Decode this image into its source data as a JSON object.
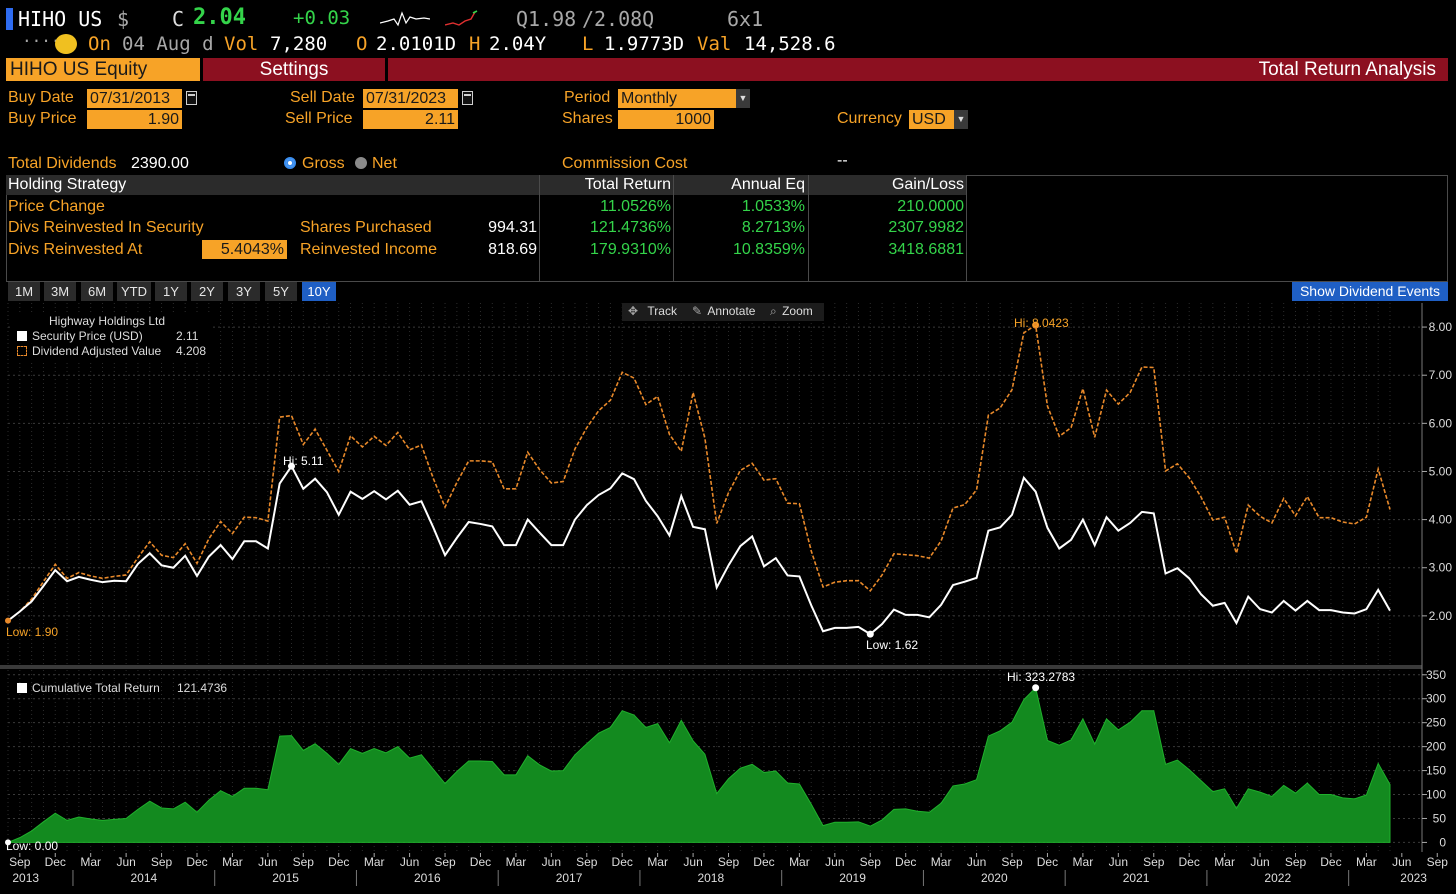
{
  "header": {
    "ticker": "HIHO US",
    "currency_symbol": "$",
    "last_label": "C",
    "last": "2.04",
    "change": "+0.03",
    "quote_q1": "Q1.98",
    "quote_sep": "/",
    "quote_q2": "2.08Q",
    "size": "6x1",
    "dots": "....",
    "on_label": "On",
    "date": "04 Aug d",
    "vol_label": "Vol",
    "vol": "7,280",
    "open_label": "O",
    "open": "2.0101D",
    "high_label": "H",
    "high": "2.04Y",
    "low_label": "L",
    "low": "1.9773D",
    "val_label": "Val",
    "val": "14,528.6"
  },
  "tabs": {
    "security": "HIHO US Equity",
    "settings": "Settings",
    "title": "Total Return Analysis"
  },
  "form": {
    "buy_date_label": "Buy Date",
    "buy_date": "07/31/2013",
    "sell_date_label": "Sell Date",
    "sell_date": "07/31/2023",
    "period_label": "Period",
    "period": "Monthly",
    "buy_price_label": "Buy Price",
    "buy_price": "1.90",
    "sell_price_label": "Sell Price",
    "sell_price": "2.11",
    "shares_label": "Shares",
    "shares": "1000",
    "currency_label": "Currency",
    "currency": "USD",
    "total_dividends_label": "Total Dividends",
    "total_dividends": "2390.00",
    "gross_label": "Gross",
    "net_label": "Net",
    "commission_label": "Commission Cost",
    "commission": "--"
  },
  "table": {
    "headers": [
      "Holding Strategy",
      "Total Return",
      "Annual Eq",
      "Gain/Loss"
    ],
    "rows": [
      {
        "label": "Price Change",
        "total_return": "11.0526%",
        "annual_eq": "1.0533%",
        "gain_loss": "210.0000"
      },
      {
        "label": "Divs Reinvested In Security",
        "mid_label": "Shares Purchased",
        "mid_value": "994.31",
        "total_return": "121.4736%",
        "annual_eq": "8.2713%",
        "gain_loss": "2307.9982"
      },
      {
        "label": "Divs Reinvested At",
        "rate": "5.4043%",
        "mid_label": "Reinvested Income",
        "mid_value": "818.69",
        "total_return": "179.9310%",
        "annual_eq": "10.8359%",
        "gain_loss": "3418.6881"
      }
    ]
  },
  "ranges": [
    "1M",
    "3M",
    "6M",
    "YTD",
    "1Y",
    "2Y",
    "3Y",
    "5Y",
    "10Y"
  ],
  "active_range": "10Y",
  "show_dividend_events": "Show Dividend Events",
  "chart_tools": {
    "track": "Track",
    "annotate": "Annotate",
    "zoom": "Zoom"
  },
  "colors": {
    "amber": "#f7a327",
    "green_text": "#34d44a",
    "area_fill": "#138a1f",
    "dividend_line": "#e8892a",
    "header_red": "#8c1020",
    "active_blue": "#1f5fc4"
  },
  "chart_data": [
    {
      "type": "line",
      "legend_title": "Highway Holdings Ltd",
      "series": [
        {
          "name": "Security Price (USD)",
          "last": "2.11",
          "color": "#ffffff",
          "values": [
            1.9,
            2.09,
            2.3,
            2.62,
            2.95,
            2.72,
            2.81,
            2.75,
            2.7,
            2.73,
            2.72,
            3.08,
            3.3,
            3.05,
            3.0,
            3.25,
            2.83,
            3.23,
            3.47,
            3.18,
            3.55,
            3.55,
            3.4,
            4.75,
            5.11,
            4.64,
            4.85,
            4.57,
            4.1,
            4.58,
            4.43,
            4.59,
            4.42,
            4.6,
            4.31,
            4.38,
            3.84,
            3.26,
            3.62,
            3.95,
            3.91,
            3.86,
            3.47,
            3.47,
            4.0,
            3.73,
            3.47,
            3.47,
            4.0,
            4.3,
            4.51,
            4.65,
            4.96,
            4.84,
            4.39,
            4.07,
            3.67,
            4.49,
            3.85,
            3.8,
            2.59,
            3.05,
            3.45,
            3.65,
            3.03,
            3.2,
            2.84,
            2.82,
            2.22,
            1.68,
            1.75,
            1.75,
            1.77,
            1.62,
            1.83,
            2.13,
            2.02,
            2.02,
            1.97,
            2.23,
            2.64,
            2.71,
            2.79,
            3.77,
            3.84,
            4.1,
            4.87,
            4.58,
            3.83,
            3.4,
            3.58,
            4.0,
            3.47,
            4.05,
            3.77,
            3.93,
            4.16,
            4.13,
            2.88,
            2.99,
            2.78,
            2.45,
            2.21,
            2.27,
            1.85,
            2.4,
            2.14,
            2.07,
            2.31,
            2.11,
            2.31,
            2.12,
            2.12,
            2.07,
            2.05,
            2.14,
            2.54,
            2.11
          ]
        },
        {
          "name": "Dividend Adjusted Value",
          "last": "4.208",
          "color": "#e8892a",
          "values": [
            1.9,
            2.09,
            2.35,
            2.71,
            3.07,
            2.78,
            2.9,
            2.83,
            2.78,
            2.82,
            2.85,
            3.21,
            3.54,
            3.26,
            3.21,
            3.5,
            3.09,
            3.6,
            3.96,
            3.71,
            4.05,
            4.04,
            3.97,
            6.13,
            6.16,
            5.56,
            5.88,
            5.44,
            5.0,
            5.74,
            5.51,
            5.73,
            5.54,
            5.81,
            5.45,
            5.55,
            4.86,
            4.26,
            4.77,
            5.22,
            5.22,
            5.2,
            4.64,
            4.64,
            5.4,
            5.04,
            4.76,
            4.79,
            5.47,
            5.91,
            6.26,
            6.48,
            7.06,
            6.94,
            6.39,
            6.56,
            5.77,
            5.42,
            6.64,
            5.69,
            3.92,
            4.56,
            5.02,
            5.17,
            4.82,
            4.85,
            4.34,
            4.33,
            3.35,
            2.6,
            2.7,
            2.73,
            2.73,
            2.52,
            2.85,
            3.29,
            3.27,
            3.25,
            3.2,
            3.56,
            4.24,
            4.31,
            4.62,
            6.17,
            6.32,
            6.7,
            7.88,
            8.04,
            6.36,
            5.73,
            5.91,
            6.72,
            5.71,
            6.69,
            6.4,
            6.64,
            7.17,
            7.16,
            5.01,
            5.16,
            4.87,
            4.47,
            3.99,
            4.05,
            3.3,
            4.3,
            4.07,
            3.93,
            4.44,
            4.08,
            4.48,
            4.04,
            4.04,
            3.95,
            3.91,
            4.05,
            5.05,
            4.21
          ]
        }
      ],
      "annotations": {
        "price_hi": "Hi: 5.11",
        "price_low": "Low: 1.62",
        "price_low_start": "Low: 1.90",
        "div_hi": "Hi: 8.0423"
      },
      "ylim": [
        1.0,
        8.5
      ],
      "yticks": [
        "2.00",
        "3.00",
        "4.00",
        "5.00",
        "6.00",
        "7.00",
        "8.00"
      ]
    },
    {
      "type": "area",
      "legend": "Cumulative Total Return",
      "legend_value": "121.4736",
      "color": "#138a1f",
      "series": [
        {
          "name": "Cumulative Total Return",
          "values": [
            0,
            10,
            24,
            43,
            61,
            46,
            53,
            49,
            46,
            48,
            50,
            69,
            86,
            72,
            70,
            84,
            63,
            88,
            108,
            96,
            113,
            113,
            110,
            222,
            223,
            192,
            206,
            186,
            163,
            196,
            186,
            196,
            187,
            200,
            176,
            183,
            153,
            123,
            148,
            170,
            170,
            169,
            141,
            141,
            181,
            162,
            149,
            150,
            183,
            206,
            228,
            240,
            275,
            266,
            240,
            248,
            208,
            255,
            212,
            184,
            102,
            133,
            155,
            163,
            146,
            149,
            124,
            122,
            80,
            35,
            42,
            42,
            43,
            34,
            47,
            69,
            70,
            65,
            63,
            82,
            118,
            122,
            131,
            222,
            233,
            251,
            298,
            323,
            213,
            203,
            214,
            258,
            205,
            258,
            235,
            251,
            275,
            275,
            163,
            172,
            152,
            129,
            106,
            112,
            71,
            112,
            105,
            96,
            119,
            103,
            124,
            100,
            100,
            93,
            91,
            99,
            165,
            121
          ]
        }
      ],
      "annotations": {
        "hi": "Hi: 323.2783",
        "low": "Low: 0.00"
      },
      "ylim": [
        -20,
        360
      ],
      "yticks": [
        "0",
        "50",
        "100",
        "150",
        "200",
        "250",
        "300",
        "350"
      ]
    }
  ],
  "x_axis": {
    "months": [
      "Sep",
      "Dec",
      "Mar",
      "Jun",
      "Sep",
      "Dec",
      "Mar",
      "Jun",
      "Sep",
      "Dec",
      "Mar",
      "Jun",
      "Sep",
      "Dec",
      "Mar",
      "Jun",
      "Sep",
      "Dec",
      "Mar",
      "Jun",
      "Sep",
      "Dec",
      "Mar",
      "Jun",
      "Sep",
      "Dec",
      "Mar",
      "Jun",
      "Sep",
      "Dec",
      "Mar",
      "Jun",
      "Sep",
      "Dec",
      "Mar",
      "Jun",
      "Sep",
      "Dec",
      "Mar",
      "Jun",
      "Sep"
    ],
    "years": [
      "2013",
      "2014",
      "2015",
      "2016",
      "2017",
      "2018",
      "2019",
      "2020",
      "2021",
      "2022",
      "2023"
    ]
  }
}
